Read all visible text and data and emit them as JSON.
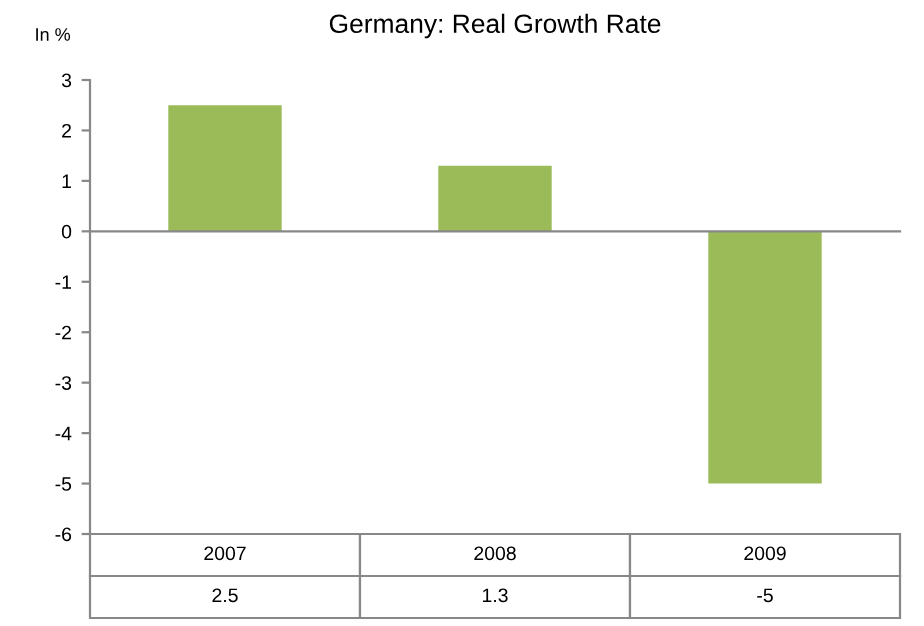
{
  "chart_data": {
    "type": "bar",
    "title": "Germany: Real Growth Rate",
    "ylabel": "In %",
    "categories": [
      "2007",
      "2008",
      "2009"
    ],
    "values": [
      2.5,
      1.3,
      -5
    ],
    "color": "#9bbb59",
    "ylim": [
      -6,
      3
    ],
    "yticks": [
      -6,
      -5,
      -4,
      -3,
      -2,
      -1,
      0,
      1,
      2,
      3
    ],
    "data_labels": true
  }
}
